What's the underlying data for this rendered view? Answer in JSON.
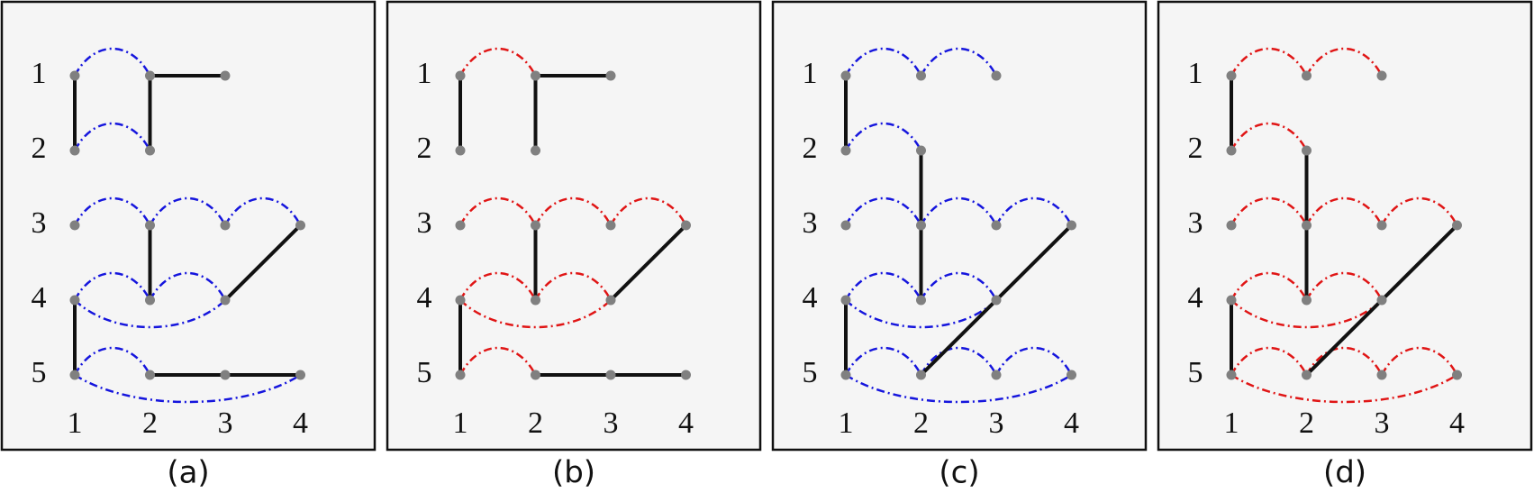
{
  "panels": [
    {
      "caption": "(a)",
      "row_labels": [
        "1",
        "2",
        "3",
        "4",
        "5"
      ],
      "col_labels": [
        "1",
        "2",
        "3",
        "4"
      ]
    },
    {
      "caption": "(b)",
      "row_labels": [
        "1",
        "2",
        "3",
        "4",
        "5"
      ],
      "col_labels": [
        "1",
        "2",
        "3",
        "4"
      ]
    },
    {
      "caption": "(c)",
      "row_labels": [
        "1",
        "2",
        "3",
        "4",
        "5"
      ],
      "col_labels": [
        "1",
        "2",
        "3",
        "4"
      ]
    },
    {
      "caption": "(d)",
      "row_labels": [
        "1",
        "2",
        "3",
        "4",
        "5"
      ],
      "col_labels": [
        "1",
        "2",
        "3",
        "4"
      ]
    }
  ]
}
